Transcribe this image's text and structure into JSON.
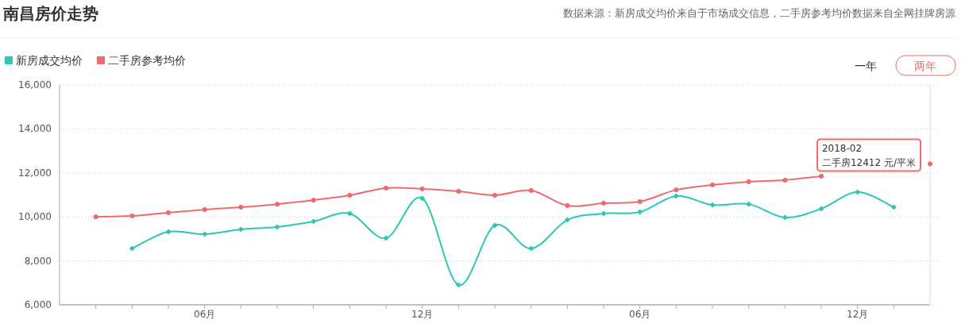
{
  "chart_data": {
    "type": "line",
    "title": "南昌房价走势",
    "x": [
      "2016-03",
      "2016-04",
      "2016-05",
      "2016-06",
      "2016-07",
      "2016-08",
      "2016-09",
      "2016-10",
      "2016-11",
      "2016-12",
      "2017-01",
      "2017-02",
      "2017-03",
      "2017-04",
      "2017-05",
      "2017-06",
      "2017-07",
      "2017-08",
      "2017-09",
      "2017-10",
      "2017-11",
      "2017-12",
      "2018-01",
      "2018-02"
    ],
    "series": [
      {
        "name": "新房成交均价",
        "color": "#2ec7b3",
        "marker": "diamond",
        "values": [
          null,
          8560,
          9320,
          9210,
          9430,
          9540,
          9790,
          10150,
          9030,
          10840,
          6900,
          9610,
          8560,
          9860,
          10150,
          10220,
          10950,
          10540,
          10580,
          9970,
          10370,
          11130,
          10440,
          null
        ]
      },
      {
        "name": "二手房参考均价",
        "color": "#ec6b6e",
        "marker": "circle",
        "values": [
          10000,
          10040,
          10190,
          10330,
          10440,
          10580,
          10760,
          10980,
          11310,
          11270,
          11160,
          10980,
          11200,
          10510,
          10620,
          10690,
          11230,
          11450,
          11600,
          11670,
          11850,
          null,
          null,
          12412
        ]
      }
    ],
    "xlim": [
      "2016-02",
      "2018-02"
    ],
    "xticks": [
      {
        "value": "2016-03",
        "label": null
      },
      {
        "value": "2016-04",
        "label": null
      },
      {
        "value": "2016-05",
        "label": null
      },
      {
        "value": "2016-06",
        "label": "06月"
      },
      {
        "value": "2016-07",
        "label": null
      },
      {
        "value": "2016-08",
        "label": null
      },
      {
        "value": "2016-09",
        "label": null
      },
      {
        "value": "2016-10",
        "label": null
      },
      {
        "value": "2016-11",
        "label": null
      },
      {
        "value": "2016-12",
        "label": "12月"
      },
      {
        "value": "2017-01",
        "label": null
      },
      {
        "value": "2017-02",
        "label": null
      },
      {
        "value": "2017-03",
        "label": null
      },
      {
        "value": "2017-04",
        "label": null
      },
      {
        "value": "2017-05",
        "label": null
      },
      {
        "value": "2017-06",
        "label": "06月"
      },
      {
        "value": "2017-07",
        "label": null
      },
      {
        "value": "2017-08",
        "label": null
      },
      {
        "value": "2017-09",
        "label": null
      },
      {
        "value": "2017-10",
        "label": null
      },
      {
        "value": "2017-11",
        "label": null
      },
      {
        "value": "2017-12",
        "label": "12月"
      },
      {
        "value": "2018-01",
        "label": null
      }
    ],
    "ylim": [
      6000,
      16000
    ],
    "yticks": [
      {
        "value": 6000,
        "label": "6,000"
      },
      {
        "value": 8000,
        "label": "8,000"
      },
      {
        "value": 10000,
        "label": "10,000"
      },
      {
        "value": 12000,
        "label": "12,000"
      },
      {
        "value": 14000,
        "label": "14,000"
      },
      {
        "value": 16000,
        "label": "16,000"
      }
    ],
    "grid": "y",
    "legend": "top left",
    "line_style": "solid",
    "annotations": [
      "数据来源：新房成交均价来自于市场成交信息，二手房参考均价数据来自全网挂牌房源",
      "一年",
      "两年",
      {
        "text": "2018-02\n二手房12412 元/平米",
        "x": "2018-02",
        "y": 12412
      }
    ]
  }
}
